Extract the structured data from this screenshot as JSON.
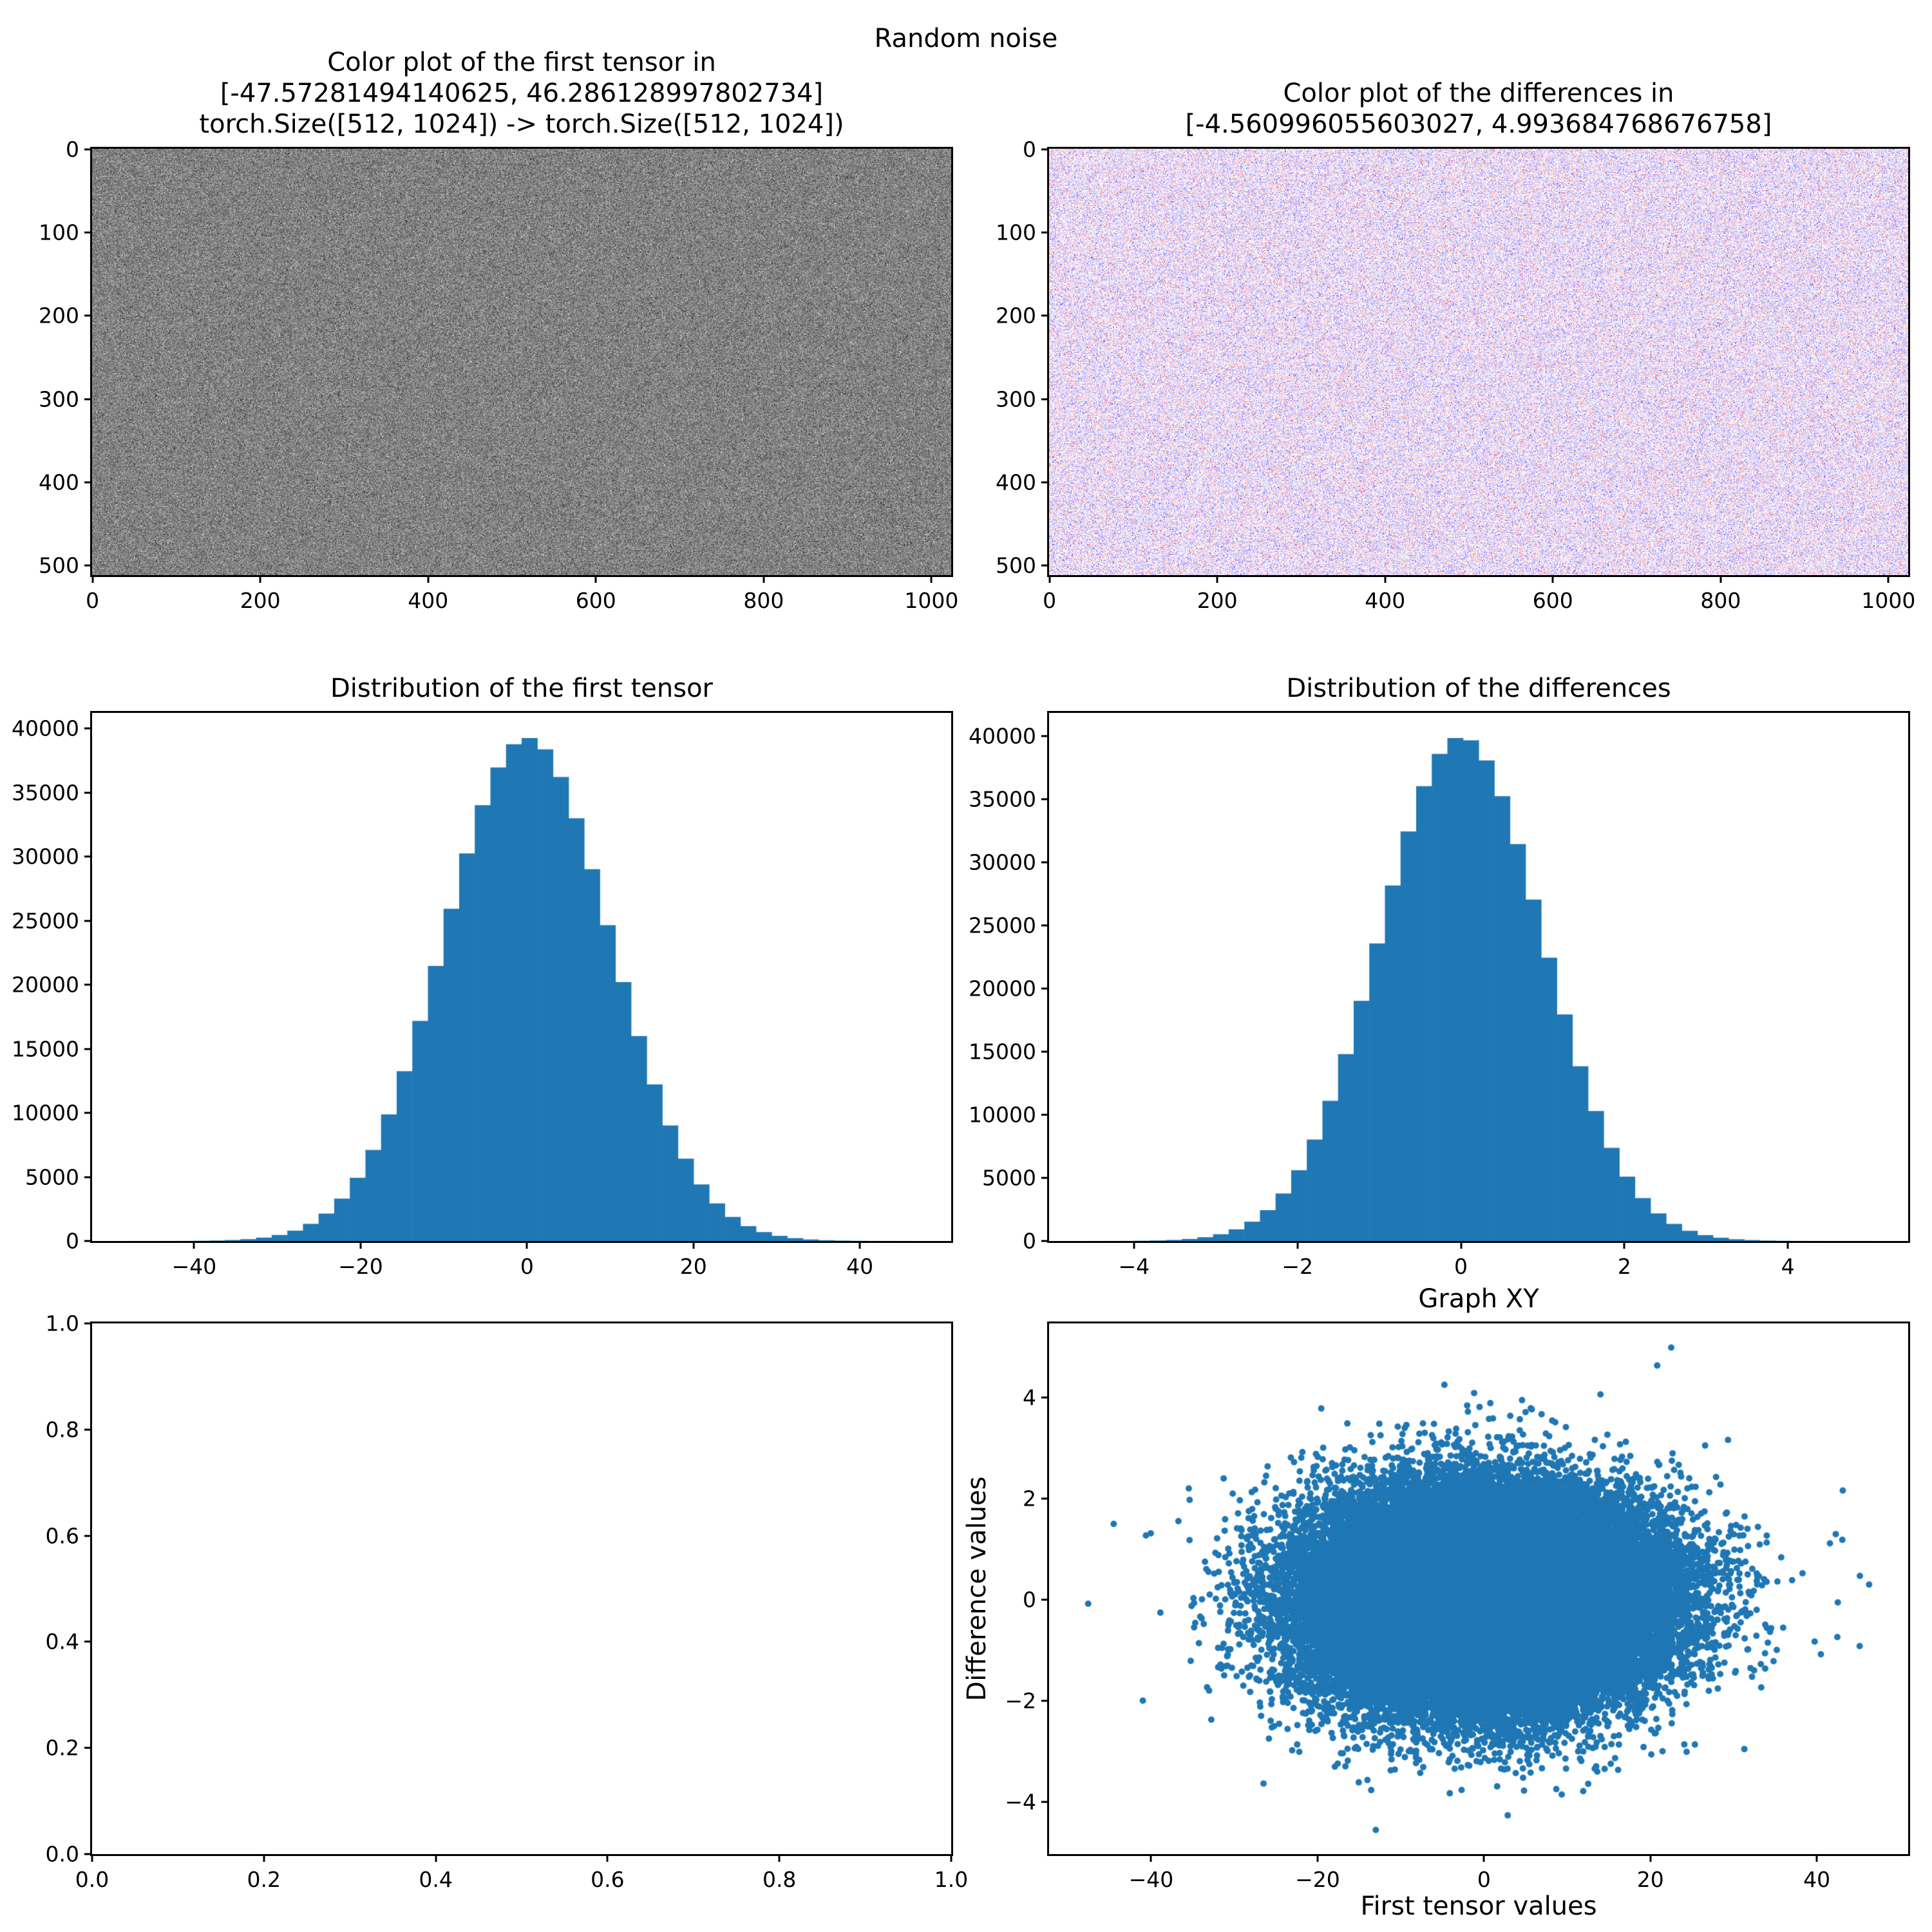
{
  "figure": {
    "suptitle": "Random noise",
    "background": "#ffffff",
    "accent_color": "#1f77b4"
  },
  "chart_data": [
    {
      "id": "tensor_image",
      "type": "heatmap",
      "title": "Color plot of the first tensor in\n[-47.57281494140625, 46.286128997802734]\ntorch.Size([512, 1024]) -> torch.Size([512, 1024])",
      "rows": 512,
      "cols": 1024,
      "value_range": [
        -47.57281494140625,
        46.286128997802734
      ],
      "distribution": "gaussian",
      "mean": 0,
      "std": 10,
      "colormap": "gray",
      "xlim": [
        -0.5,
        1023.5
      ],
      "ylim": [
        511.5,
        -0.5
      ],
      "xticks": [
        0,
        200,
        400,
        600,
        800,
        1000
      ],
      "xtick_labels": [
        "0",
        "200",
        "400",
        "600",
        "800",
        "1000"
      ],
      "yticks": [
        0,
        100,
        200,
        300,
        400,
        500
      ],
      "ytick_labels": [
        "0",
        "100",
        "200",
        "300",
        "400",
        "500"
      ]
    },
    {
      "id": "diff_image",
      "type": "heatmap",
      "title": "Color plot of the differences in\n[-4.560996055603027, 4.993684768676758]",
      "rows": 512,
      "cols": 1024,
      "value_range": [
        -4.560996055603027,
        4.993684768676758
      ],
      "distribution": "gaussian",
      "mean": 0,
      "std": 1,
      "colormap": "bwr",
      "xlim": [
        -0.5,
        1023.5
      ],
      "ylim": [
        511.5,
        -0.5
      ],
      "xticks": [
        0,
        200,
        400,
        600,
        800,
        1000
      ],
      "xtick_labels": [
        "0",
        "200",
        "400",
        "600",
        "800",
        "1000"
      ],
      "yticks": [
        0,
        100,
        200,
        300,
        400,
        500
      ],
      "ytick_labels": [
        "0",
        "100",
        "200",
        "300",
        "400",
        "500"
      ]
    },
    {
      "id": "tensor_hist",
      "type": "bar",
      "title": "Distribution of the first tensor",
      "bar_color": "#1f77b4",
      "bin_start": -47.57281494140625,
      "bin_width": 1.8771883,
      "counts": [
        1,
        2,
        4,
        9,
        19,
        38,
        75,
        144,
        265,
        470,
        807,
        1339,
        2140,
        3306,
        4931,
        7103,
        9878,
        13251,
        17173,
        21464,
        25925,
        30244,
        34009,
        36954,
        38764,
        39247,
        38366,
        36209,
        32989,
        29015,
        24645,
        20205,
        15991,
        12218,
        9014,
        6423,
        4413,
        2933,
        1877,
        1159,
        695,
        400,
        223,
        120,
        62,
        31,
        15,
        7,
        3,
        1
      ],
      "xlim": [
        -52.2658,
        50.9791
      ],
      "ylim": [
        0,
        41209
      ],
      "xticks": [
        -40,
        -20,
        0,
        20,
        40
      ],
      "xtick_labels": [
        "−40",
        "−20",
        "0",
        "20",
        "40"
      ],
      "yticks": [
        0,
        5000,
        10000,
        15000,
        20000,
        25000,
        30000,
        35000,
        40000
      ],
      "ytick_labels": [
        "0",
        "5000",
        "10000",
        "15000",
        "20000",
        "25000",
        "30000",
        "35000",
        "40000"
      ]
    },
    {
      "id": "diff_hist",
      "type": "bar",
      "title": "Distribution of the differences",
      "bar_color": "#1f77b4",
      "bin_start": -4.560996055603027,
      "bin_width": 0.19109362,
      "counts": [
        2,
        4,
        10,
        21,
        42,
        84,
        162,
        300,
        536,
        923,
        1530,
        2445,
        3765,
        5608,
        8041,
        11110,
        14812,
        19036,
        23585,
        28177,
        32462,
        36051,
        38609,
        39864,
        39684,
        38090,
        35256,
        31459,
        27062,
        22454,
        17958,
        13849,
        10300,
        7382,
        5100,
        3401,
        2186,
        1355,
        808,
        467,
        259,
        139,
        72,
        36,
        17,
        8,
        4,
        2,
        1,
        1
      ],
      "xlim": [
        -5.03873,
        5.47142
      ],
      "ylim": [
        0,
        41857
      ],
      "xticks": [
        -4,
        -2,
        0,
        2,
        4
      ],
      "xtick_labels": [
        "−4",
        "−2",
        "0",
        "2",
        "4"
      ],
      "yticks": [
        0,
        5000,
        10000,
        15000,
        20000,
        25000,
        30000,
        35000,
        40000
      ],
      "ytick_labels": [
        "0",
        "5000",
        "10000",
        "15000",
        "20000",
        "25000",
        "30000",
        "35000",
        "40000"
      ]
    },
    {
      "id": "empty_plot",
      "type": "empty",
      "xlim": [
        0,
        1
      ],
      "ylim": [
        0,
        1
      ],
      "xticks": [
        0,
        0.2,
        0.4,
        0.6,
        0.8,
        1.0
      ],
      "xtick_labels": [
        "0.0",
        "0.2",
        "0.4",
        "0.6",
        "0.8",
        "1.0"
      ],
      "yticks": [
        0,
        0.2,
        0.4,
        0.6,
        0.8,
        1.0
      ],
      "ytick_labels": [
        "0.0",
        "0.2",
        "0.4",
        "0.6",
        "0.8",
        "1.0"
      ]
    },
    {
      "id": "scatter_xy",
      "type": "scatter",
      "title": "Graph XY",
      "xlabel": "First tensor values",
      "ylabel": "Difference values",
      "marker_color": "#1f77b4",
      "n_points": 524288,
      "x_distribution": "gaussian",
      "x_mean": 0,
      "x_std": 10,
      "y_distribution": "gaussian",
      "y_mean": 0,
      "y_std": 1,
      "x_range": [
        -47.57281494140625,
        46.286128997802734
      ],
      "y_range": [
        -4.560996055603027,
        4.993684768676758
      ],
      "extreme_points": [
        [
          -47.5728,
          -0.08
        ],
        [
          46.2861,
          0.3
        ],
        [
          22.5,
          4.9937
        ],
        [
          -13.0,
          -4.561
        ],
        [
          -44.5,
          1.5
        ],
        [
          -41.0,
          -2.0
        ]
      ],
      "xlim": [
        -52.2658,
        50.9791
      ],
      "ylim": [
        -5.03873,
        5.47142
      ],
      "xticks": [
        -40,
        -20,
        0,
        20,
        40
      ],
      "xtick_labels": [
        "−40",
        "−20",
        "0",
        "20",
        "40"
      ],
      "yticks": [
        -4,
        -2,
        0,
        2,
        4
      ],
      "ytick_labels": [
        "−4",
        "−2",
        "0",
        "2",
        "4"
      ]
    }
  ]
}
